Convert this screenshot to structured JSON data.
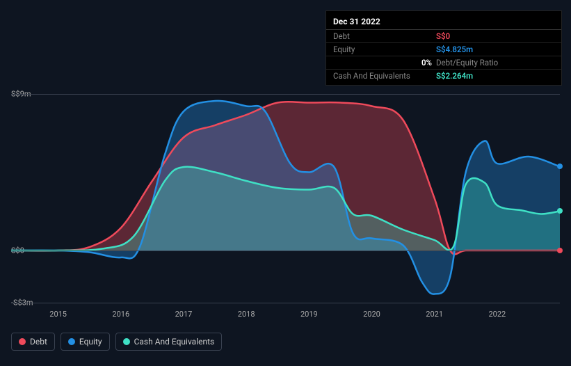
{
  "chart": {
    "type": "area",
    "background_color": "#0e1521",
    "grid_color": "#394150",
    "text_color": "#aaa",
    "y_axis": {
      "min": -3,
      "max": 9,
      "ticks": [
        {
          "v": 9,
          "label": "S$9m"
        },
        {
          "v": 0,
          "label": "S$0"
        },
        {
          "v": -3,
          "label": "-S$3m"
        }
      ]
    },
    "x_axis": {
      "min": 2014.25,
      "max": 2023,
      "tick_labels": [
        "2015",
        "2016",
        "2017",
        "2018",
        "2019",
        "2020",
        "2021",
        "2022"
      ],
      "tick_positions": [
        2015,
        2016,
        2017,
        2018,
        2019,
        2020,
        2021,
        2022
      ]
    },
    "series": [
      {
        "name": "Debt",
        "color": "#ef4a5b",
        "fill_opacity": 0.35,
        "line_width": 2.5,
        "points": [
          [
            2014.25,
            0
          ],
          [
            2015,
            0
          ],
          [
            2015.5,
            0.2
          ],
          [
            2016,
            1.3
          ],
          [
            2016.5,
            4.0
          ],
          [
            2017,
            6.5
          ],
          [
            2017.5,
            7.2
          ],
          [
            2018,
            7.8
          ],
          [
            2018.5,
            8.5
          ],
          [
            2019,
            8.5
          ],
          [
            2019.5,
            8.5
          ],
          [
            2020,
            8.3
          ],
          [
            2020.5,
            7.5
          ],
          [
            2021,
            3.0
          ],
          [
            2021.25,
            0
          ],
          [
            2021.5,
            0
          ],
          [
            2022,
            0
          ],
          [
            2023,
            0
          ]
        ]
      },
      {
        "name": "Equity",
        "color": "#2390e4",
        "fill_opacity": 0.35,
        "line_width": 2.5,
        "points": [
          [
            2014.25,
            0
          ],
          [
            2015,
            0
          ],
          [
            2015.5,
            -0.1
          ],
          [
            2016,
            -0.4
          ],
          [
            2016.3,
            0.2
          ],
          [
            2016.7,
            5.5
          ],
          [
            2017,
            8.0
          ],
          [
            2017.5,
            8.6
          ],
          [
            2018,
            8.3
          ],
          [
            2018.3,
            8.0
          ],
          [
            2018.7,
            5.0
          ],
          [
            2019,
            4.5
          ],
          [
            2019.4,
            4.8
          ],
          [
            2019.7,
            1.0
          ],
          [
            2020,
            0.7
          ],
          [
            2020.5,
            0.3
          ],
          [
            2020.8,
            -1.8
          ],
          [
            2021,
            -2.5
          ],
          [
            2021.25,
            -1.5
          ],
          [
            2021.5,
            4.5
          ],
          [
            2021.8,
            6.3
          ],
          [
            2022,
            5.0
          ],
          [
            2022.5,
            5.4
          ],
          [
            2023,
            4.825
          ]
        ]
      },
      {
        "name": "Cash And Equivalents",
        "color": "#3fe0c5",
        "fill_opacity": 0.3,
        "line_width": 2.5,
        "points": [
          [
            2014.25,
            0
          ],
          [
            2015,
            0
          ],
          [
            2015.7,
            0.1
          ],
          [
            2016.2,
            0.8
          ],
          [
            2016.7,
            4.0
          ],
          [
            2017,
            4.8
          ],
          [
            2017.5,
            4.5
          ],
          [
            2018,
            4.0
          ],
          [
            2018.5,
            3.6
          ],
          [
            2019,
            3.5
          ],
          [
            2019.4,
            3.6
          ],
          [
            2019.7,
            2.1
          ],
          [
            2020,
            2.0
          ],
          [
            2020.5,
            1.2
          ],
          [
            2021,
            0.6
          ],
          [
            2021.3,
            0.2
          ],
          [
            2021.5,
            3.8
          ],
          [
            2021.8,
            3.9
          ],
          [
            2022,
            2.6
          ],
          [
            2022.4,
            2.3
          ],
          [
            2022.7,
            2.1
          ],
          [
            2023,
            2.264
          ]
        ]
      }
    ]
  },
  "tooltip": {
    "title": "Dec 31 2022",
    "rows": [
      {
        "label": "Debt",
        "value": "S$0",
        "color": "#ef4a5b"
      },
      {
        "label": "Equity",
        "value": "S$4.825m",
        "color": "#2390e4"
      }
    ],
    "ratio": {
      "pct": "0%",
      "label": "Debt/Equity Ratio"
    },
    "cash_row": {
      "label": "Cash And Equivalents",
      "value": "S$2.264m",
      "color": "#3fe0c5"
    }
  },
  "legend": [
    {
      "label": "Debt",
      "color": "#ef4a5b"
    },
    {
      "label": "Equity",
      "color": "#2390e4"
    },
    {
      "label": "Cash And Equivalents",
      "color": "#3fe0c5"
    }
  ]
}
